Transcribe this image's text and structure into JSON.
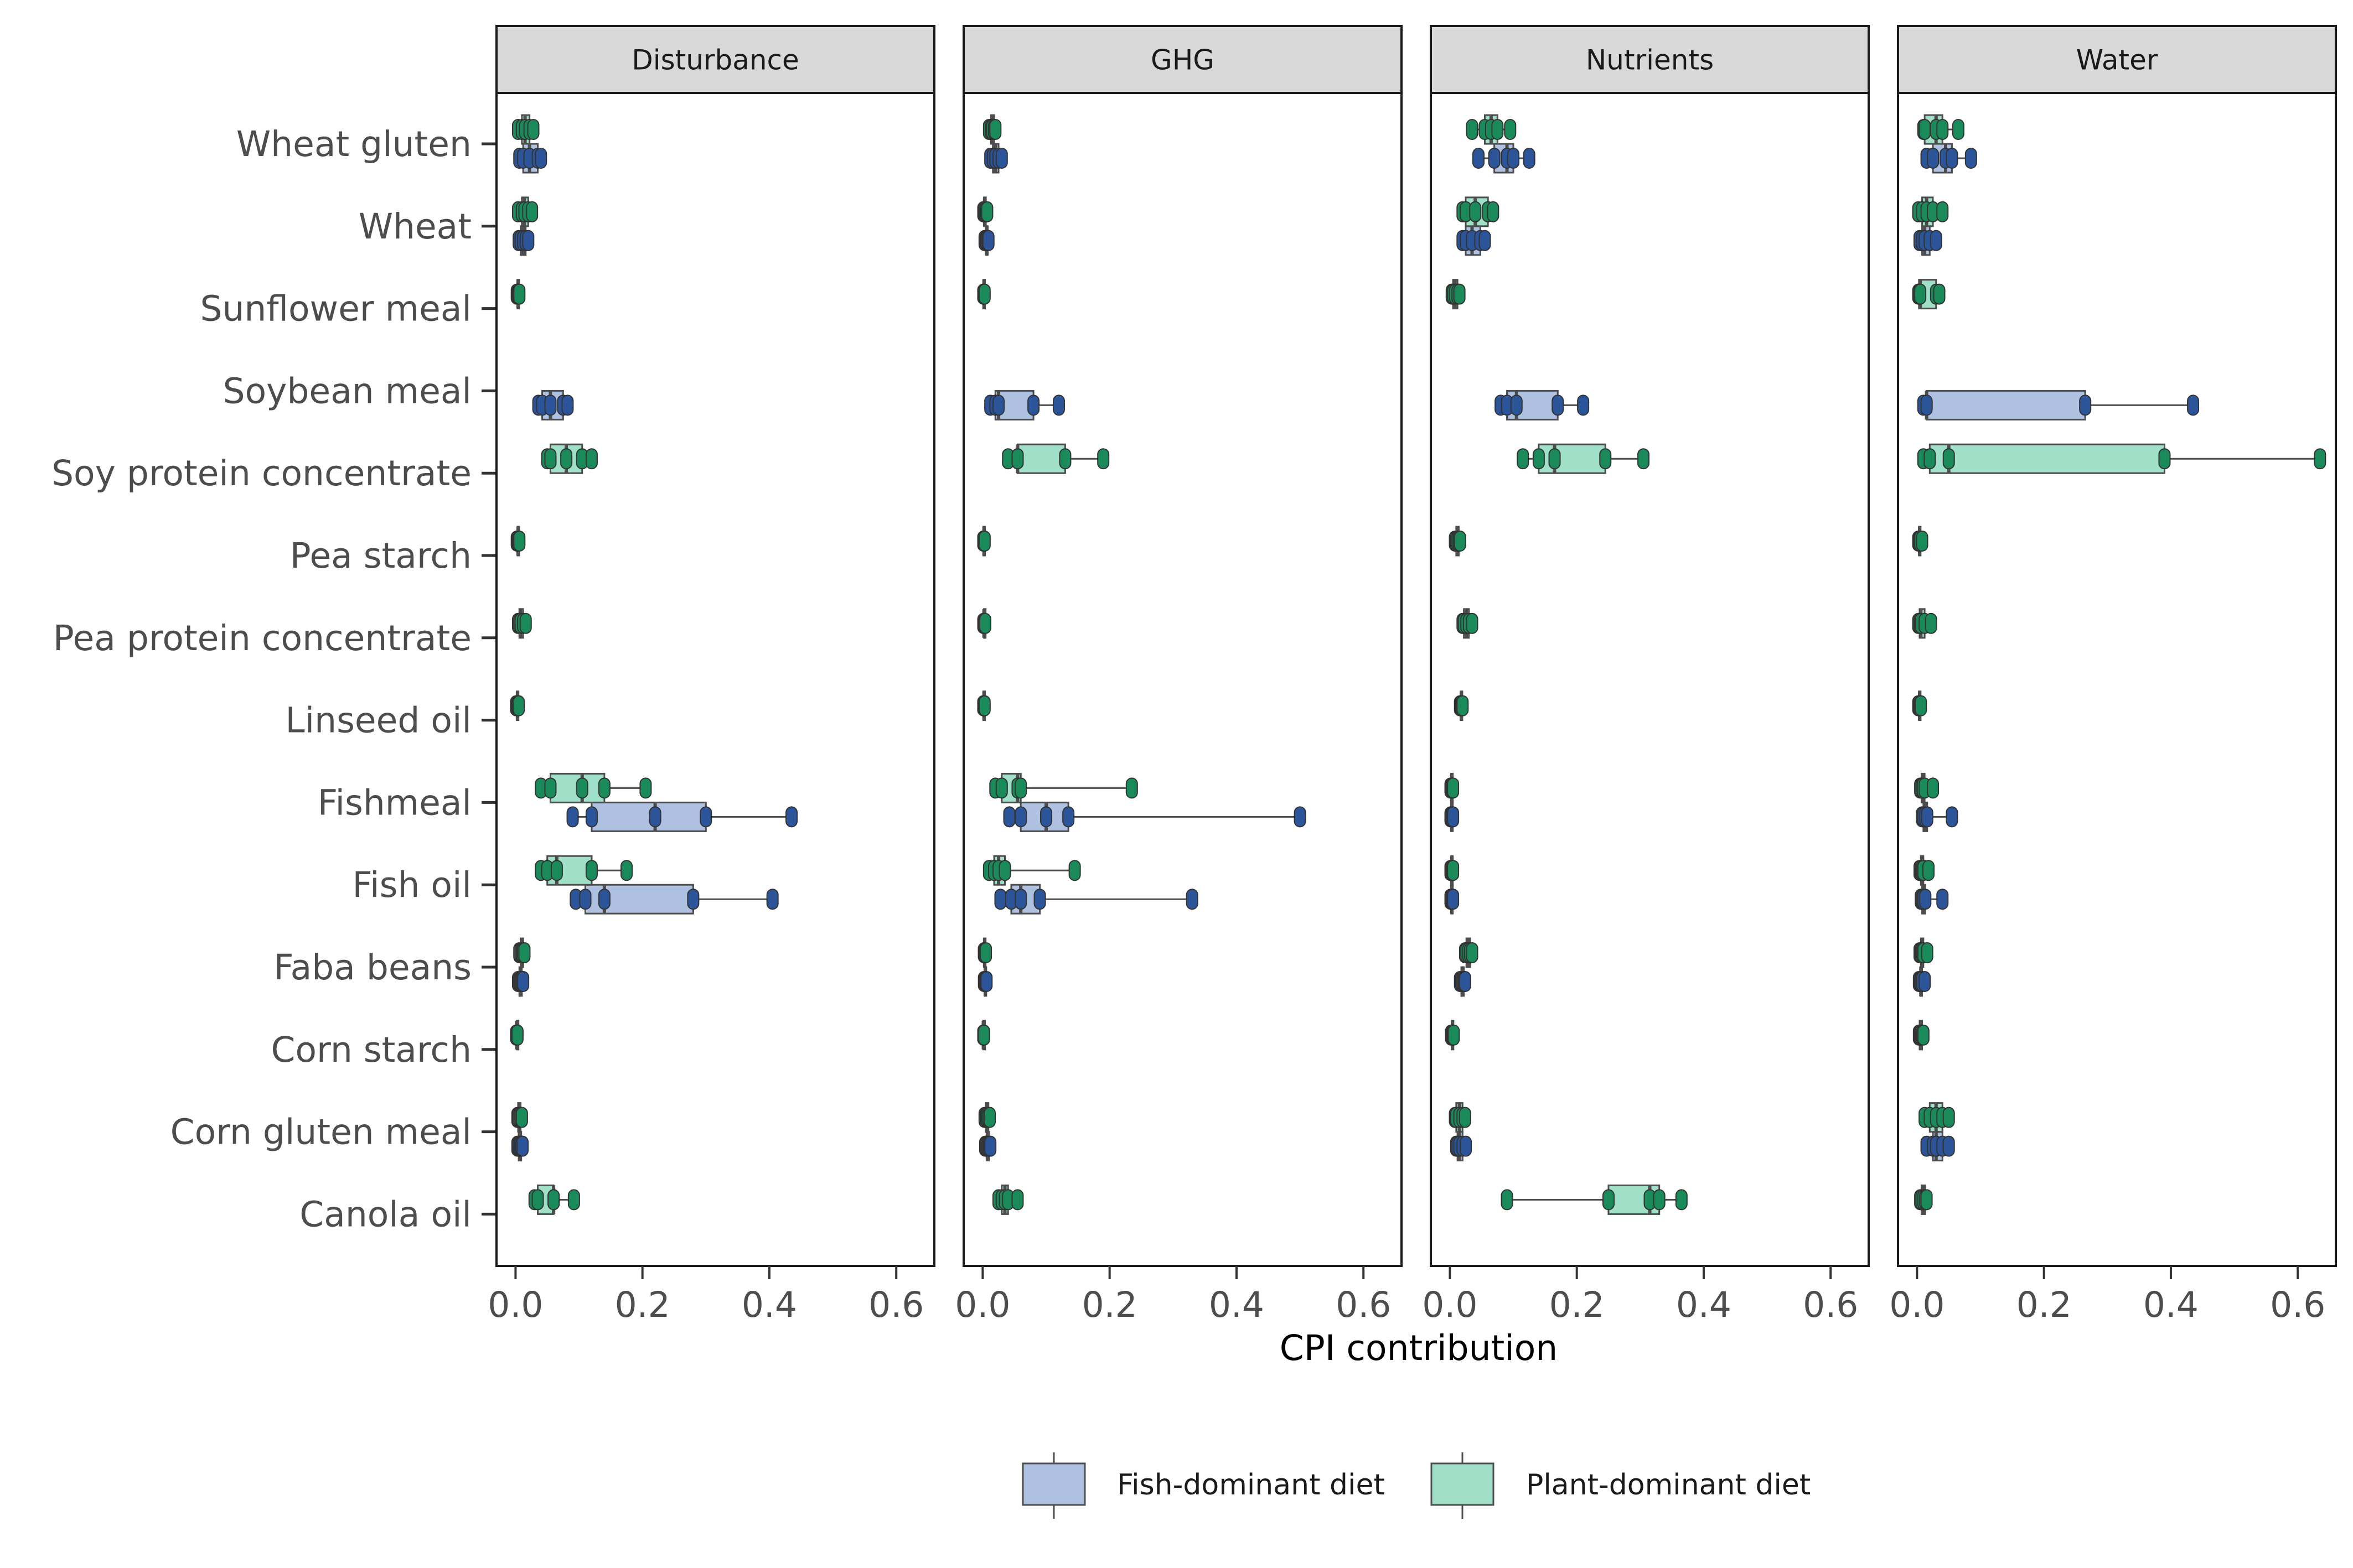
{
  "chart_data": {
    "type": "boxplot",
    "panels": [
      "Disturbance",
      "GHG",
      "Nutrients",
      "Water"
    ],
    "categories": [
      "Wheat gluten",
      "Wheat",
      "Sunflower meal",
      "Soybean meal",
      "Soy protein concentrate",
      "Pea starch",
      "Pea protein concentrate",
      "Linseed oil",
      "Fishmeal",
      "Fish oil",
      "Faba beans",
      "Corn starch",
      "Corn gluten meal",
      "Canola oil"
    ],
    "xlabel": "CPI contribution",
    "ylabel": "",
    "xlim": [
      -0.03,
      0.66
    ],
    "x_ticks": [
      0.0,
      0.2,
      0.4,
      0.6
    ],
    "x_tick_labels": [
      "0.0",
      "0.2",
      "0.4",
      "0.6"
    ],
    "grid": false,
    "legend_position": "bottom",
    "series": [
      {
        "name": "Fish-dominant diet",
        "fill": "#aec1e0",
        "point_color": "#2b5499",
        "data": {
          "Disturbance": {
            "Wheat gluten": [
              0.006,
              0.012,
              0.022,
              0.035,
              0.04
            ],
            "Wheat": [
              0.005,
              0.008,
              0.012,
              0.016,
              0.02
            ],
            "Soybean meal": [
              0.036,
              0.042,
              0.055,
              0.075,
              0.082
            ],
            "Fishmeal": [
              0.09,
              0.12,
              0.22,
              0.3,
              0.435
            ],
            "Fish oil": [
              0.095,
              0.11,
              0.14,
              0.28,
              0.405
            ],
            "Faba beans": [
              0.004,
              0.006,
              0.008,
              0.01,
              0.012
            ],
            "Corn gluten meal": [
              0.003,
              0.005,
              0.007,
              0.009,
              0.011
            ]
          },
          "GHG": {
            "Wheat gluten": [
              0.012,
              0.016,
              0.02,
              0.025,
              0.03
            ],
            "Wheat": [
              0.003,
              0.005,
              0.006,
              0.008,
              0.009
            ],
            "Soybean meal": [
              0.012,
              0.02,
              0.025,
              0.08,
              0.12
            ],
            "Fishmeal": [
              0.042,
              0.06,
              0.1,
              0.135,
              0.5
            ],
            "Fish oil": [
              0.028,
              0.045,
              0.06,
              0.09,
              0.33
            ],
            "Faba beans": [
              0.002,
              0.003,
              0.004,
              0.005,
              0.006
            ],
            "Corn gluten meal": [
              0.004,
              0.006,
              0.008,
              0.01,
              0.012
            ]
          },
          "Nutrients": {
            "Wheat gluten": [
              0.045,
              0.07,
              0.09,
              0.1,
              0.125
            ],
            "Wheat": [
              0.02,
              0.025,
              0.035,
              0.048,
              0.055
            ],
            "Soybean meal": [
              0.08,
              0.09,
              0.105,
              0.17,
              0.21
            ],
            "Fishmeal": [
              0.001,
              0.002,
              0.003,
              0.004,
              0.005
            ],
            "Fish oil": [
              0.001,
              0.002,
              0.003,
              0.004,
              0.005
            ],
            "Faba beans": [
              0.016,
              0.018,
              0.02,
              0.022,
              0.024
            ],
            "Corn gluten meal": [
              0.01,
              0.012,
              0.015,
              0.02,
              0.025
            ]
          },
          "Water": {
            "Wheat gluten": [
              0.015,
              0.025,
              0.045,
              0.055,
              0.085
            ],
            "Wheat": [
              0.004,
              0.008,
              0.012,
              0.02,
              0.03
            ],
            "Soybean meal": [
              0.01,
              0.015,
              0.015,
              0.265,
              0.435
            ],
            "Fishmeal": [
              0.008,
              0.01,
              0.013,
              0.016,
              0.055
            ],
            "Fish oil": [
              0.006,
              0.008,
              0.01,
              0.013,
              0.04
            ],
            "Faba beans": [
              0.003,
              0.005,
              0.006,
              0.008,
              0.012
            ],
            "Corn gluten meal": [
              0.015,
              0.025,
              0.03,
              0.04,
              0.05
            ]
          }
        }
      },
      {
        "name": "Plant-dominant diet",
        "fill": "#a0dfc8",
        "point_color": "#1a8a5a",
        "data": {
          "Disturbance": {
            "Wheat gluten": [
              0.004,
              0.01,
              0.015,
              0.022,
              0.028
            ],
            "Wheat": [
              0.004,
              0.01,
              0.014,
              0.02,
              0.026
            ],
            "Sunflower meal": [
              0.002,
              0.003,
              0.004,
              0.005,
              0.006
            ],
            "Soy protein concentrate": [
              0.05,
              0.055,
              0.08,
              0.105,
              0.12
            ],
            "Pea starch": [
              0.002,
              0.003,
              0.004,
              0.005,
              0.006
            ],
            "Pea protein concentrate": [
              0.004,
              0.006,
              0.008,
              0.012,
              0.016
            ],
            "Linseed oil": [
              0.001,
              0.002,
              0.003,
              0.004,
              0.005
            ],
            "Fishmeal": [
              0.04,
              0.055,
              0.105,
              0.14,
              0.205
            ],
            "Fish oil": [
              0.04,
              0.05,
              0.065,
              0.12,
              0.175
            ],
            "Faba beans": [
              0.006,
              0.008,
              0.01,
              0.012,
              0.014
            ],
            "Corn starch": [
              0.001,
              0.002,
              0.002,
              0.003,
              0.003
            ],
            "Corn gluten meal": [
              0.003,
              0.004,
              0.006,
              0.008,
              0.01
            ],
            "Canola oil": [
              0.03,
              0.035,
              0.06,
              0.06,
              0.092
            ]
          },
          "GHG": {
            "Wheat gluten": [
              0.01,
              0.013,
              0.015,
              0.018,
              0.02
            ],
            "Wheat": [
              0.001,
              0.002,
              0.003,
              0.005,
              0.007
            ],
            "Sunflower meal": [
              0.001,
              0.001,
              0.002,
              0.002,
              0.003
            ],
            "Soy protein concentrate": [
              0.04,
              0.055,
              0.055,
              0.13,
              0.19
            ],
            "Pea starch": [
              0.001,
              0.001,
              0.002,
              0.002,
              0.003
            ],
            "Pea protein concentrate": [
              0.001,
              0.002,
              0.002,
              0.003,
              0.004
            ],
            "Linseed oil": [
              0.001,
              0.001,
              0.002,
              0.002,
              0.003
            ],
            "Fishmeal": [
              0.02,
              0.03,
              0.055,
              0.06,
              0.235
            ],
            "Fish oil": [
              0.01,
              0.018,
              0.025,
              0.035,
              0.145
            ],
            "Faba beans": [
              0.002,
              0.002,
              0.003,
              0.004,
              0.005
            ],
            "Corn starch": [
              0.001,
              0.001,
              0.001,
              0.002,
              0.002
            ],
            "Corn gluten meal": [
              0.003,
              0.005,
              0.007,
              0.009,
              0.011
            ],
            "Canola oil": [
              0.025,
              0.03,
              0.035,
              0.04,
              0.055
            ]
          },
          "Nutrients": {
            "Wheat gluten": [
              0.035,
              0.055,
              0.065,
              0.075,
              0.095
            ],
            "Wheat": [
              0.02,
              0.025,
              0.04,
              0.06,
              0.068
            ],
            "Sunflower meal": [
              0.003,
              0.005,
              0.008,
              0.012,
              0.015
            ],
            "Soy protein concentrate": [
              0.115,
              0.14,
              0.165,
              0.245,
              0.305
            ],
            "Pea starch": [
              0.008,
              0.01,
              0.012,
              0.014,
              0.016
            ],
            "Pea protein concentrate": [
              0.02,
              0.022,
              0.026,
              0.03,
              0.035
            ],
            "Linseed oil": [
              0.016,
              0.017,
              0.018,
              0.019,
              0.02
            ],
            "Fishmeal": [
              0.001,
              0.002,
              0.003,
              0.004,
              0.005
            ],
            "Fish oil": [
              0.001,
              0.002,
              0.003,
              0.004,
              0.005
            ],
            "Faba beans": [
              0.024,
              0.026,
              0.029,
              0.032,
              0.035
            ],
            "Corn starch": [
              0.002,
              0.003,
              0.004,
              0.005,
              0.006
            ],
            "Corn gluten meal": [
              0.008,
              0.01,
              0.015,
              0.02,
              0.024
            ],
            "Canola oil": [
              0.09,
              0.25,
              0.315,
              0.33,
              0.365
            ]
          },
          "Water": {
            "Wheat gluten": [
              0.01,
              0.012,
              0.03,
              0.04,
              0.065
            ],
            "Wheat": [
              0.002,
              0.008,
              0.015,
              0.025,
              0.04
            ],
            "Sunflower meal": [
              0.002,
              0.003,
              0.005,
              0.03,
              0.035
            ],
            "Soy protein concentrate": [
              0.01,
              0.02,
              0.05,
              0.39,
              0.635
            ],
            "Pea starch": [
              0.002,
              0.003,
              0.004,
              0.005,
              0.008
            ],
            "Pea protein concentrate": [
              0.002,
              0.004,
              0.006,
              0.012,
              0.022
            ],
            "Linseed oil": [
              0.002,
              0.003,
              0.004,
              0.005,
              0.006
            ],
            "Fishmeal": [
              0.005,
              0.007,
              0.009,
              0.012,
              0.025
            ],
            "Fish oil": [
              0.004,
              0.006,
              0.008,
              0.01,
              0.018
            ],
            "Faba beans": [
              0.004,
              0.006,
              0.008,
              0.01,
              0.016
            ],
            "Corn starch": [
              0.003,
              0.004,
              0.006,
              0.008,
              0.01
            ],
            "Corn gluten meal": [
              0.012,
              0.02,
              0.03,
              0.04,
              0.05
            ],
            "Canola oil": [
              0.005,
              0.007,
              0.01,
              0.013,
              0.015
            ]
          }
        }
      }
    ]
  }
}
